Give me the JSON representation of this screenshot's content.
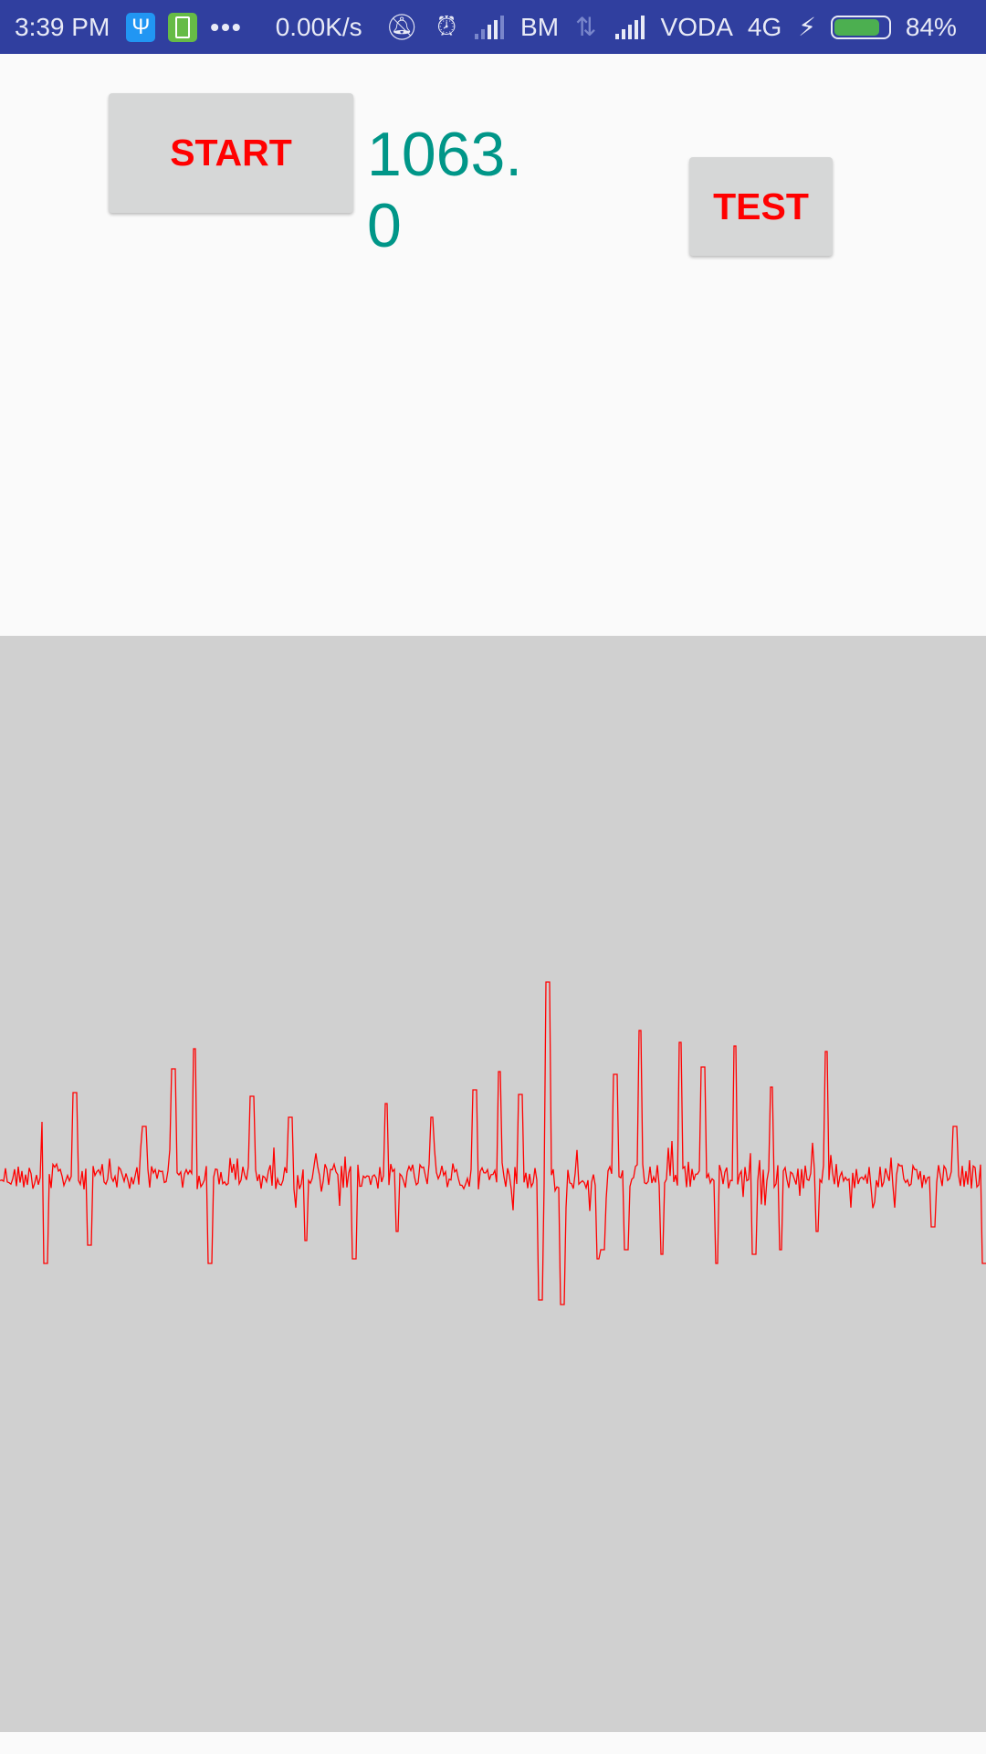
{
  "status_bar": {
    "time": "3:39 PM",
    "usb_icon": "usb-icon",
    "battery_saver_icon": "battery-saver-icon",
    "more_indicator": "•••",
    "net_speed": "0.00K/s",
    "carrier1": "BM",
    "carrier2": "VODA",
    "network_type": "4G",
    "battery_percent": "84%",
    "battery_level": 0.84,
    "battery_color": "#4caf50",
    "bar_color": "#303f9f"
  },
  "controls": {
    "start_label": "START",
    "test_label": "TEST",
    "reading": "1063.0",
    "reading_color": "#009688",
    "button_text_color": "#ff0000"
  },
  "waveform": {
    "trace_color": "#ff0000",
    "background_color": "#d0d0d0"
  }
}
